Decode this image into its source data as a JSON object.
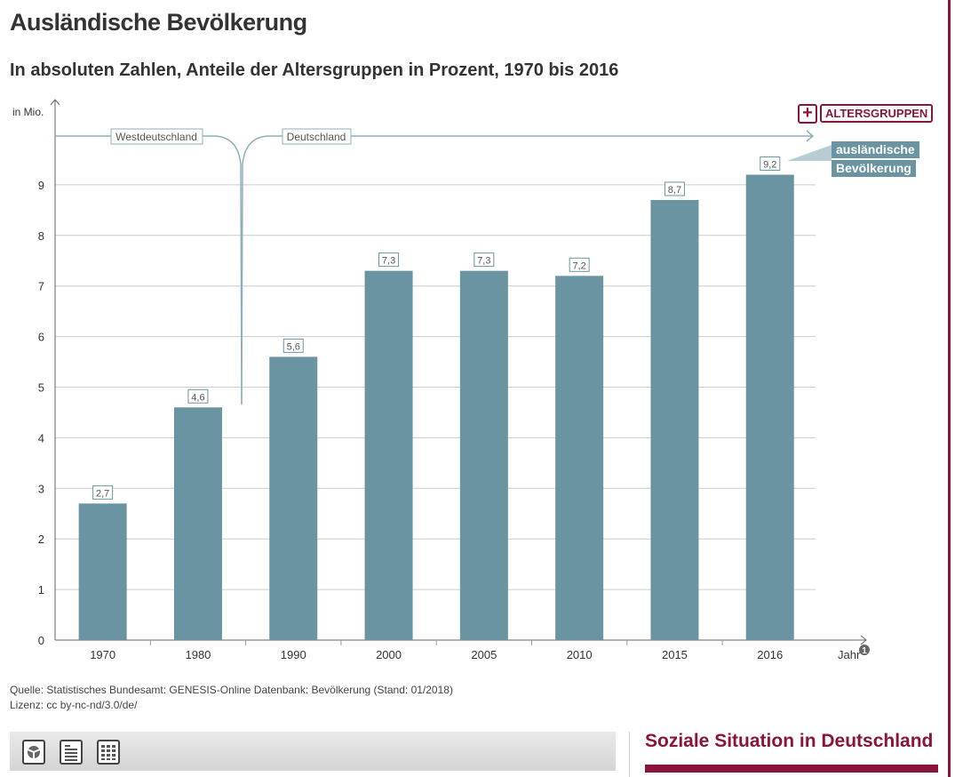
{
  "title": "Ausländische Bevölkerung",
  "subtitle": "In absoluten Zahlen, Anteile der Altersgruppen in Prozent, 1970 bis 2016",
  "source": "Quelle: Statistisches Bundesamt: GENESIS-Online Datenbank: Bevölkerung (Stand: 01/2018)",
  "license": "Lizenz: cc by-nc-nd/3.0/de/",
  "altersgruppen_button": "ALTERSGRUPPEN",
  "plus_symbol": "+",
  "brand": "Soziale Situation in Deutschland",
  "colors": {
    "bar": "#6a94a1",
    "accent": "#8a1538"
  },
  "toolbar": {
    "icons": [
      "chart-icon",
      "text-icon",
      "table-icon"
    ]
  },
  "chart_data": {
    "type": "bar",
    "ylabel": "in Mio.",
    "xlabel": "Jahr",
    "xlabel_note": "1",
    "ylim": [
      0,
      10
    ],
    "yticks": [
      0,
      1,
      2,
      3,
      4,
      5,
      6,
      7,
      8,
      9
    ],
    "grid": true,
    "categories": [
      "1970",
      "1980",
      "1990",
      "2000",
      "2005",
      "2010",
      "2015",
      "2016"
    ],
    "values": [
      2.7,
      4.6,
      5.6,
      7.3,
      7.3,
      7.2,
      8.7,
      9.2
    ],
    "value_labels": [
      "2,7",
      "4,6",
      "5,6",
      "7,3",
      "7,3",
      "7,2",
      "8,7",
      "9,2"
    ],
    "legend": [
      "ausländische",
      "Bevölkerung"
    ],
    "periods": [
      "Westdeutschland",
      "Deutschland"
    ]
  }
}
